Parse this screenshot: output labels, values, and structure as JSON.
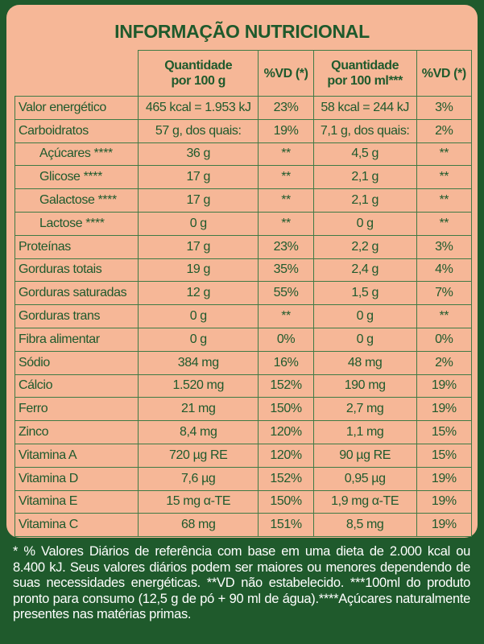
{
  "title": "INFORMAÇÃO NUTRICIONAL",
  "table": {
    "header": [
      [
        "Quantidade",
        "por 100 g"
      ],
      [
        "%VD (*)"
      ],
      [
        "Quantidade",
        "por 100 ml***"
      ],
      [
        "%VD (*)"
      ]
    ],
    "rows": [
      [
        "Valor energético",
        "465 kcal = 1.953 kJ",
        "23%",
        "58 kcal = 244 kJ",
        "3%"
      ],
      [
        "Carboidratos",
        "57 g, dos quais:",
        "19%",
        "7,1 g, dos quais:",
        "2%"
      ],
      [
        "Açúcares ****",
        "36 g",
        "**",
        "4,5 g",
        "**"
      ],
      [
        "Glicose ****",
        "17 g",
        "**",
        "2,1 g",
        "**"
      ],
      [
        "Galactose ****",
        "17 g",
        "**",
        "2,1 g",
        "**"
      ],
      [
        "Lactose ****",
        "0 g",
        "**",
        "0 g",
        "**"
      ],
      [
        "Proteínas",
        "17 g",
        "23%",
        "2,2 g",
        "3%"
      ],
      [
        "Gorduras totais",
        "19 g",
        "35%",
        "2,4 g",
        "4%"
      ],
      [
        "Gorduras saturadas",
        "12 g",
        "55%",
        "1,5 g",
        "7%"
      ],
      [
        "Gorduras trans",
        "0 g",
        "**",
        "0 g",
        "**"
      ],
      [
        "Fibra alimentar",
        "0 g",
        "0%",
        "0 g",
        "0%"
      ],
      [
        "Sódio",
        "384 mg",
        "16%",
        "48 mg",
        "2%"
      ],
      [
        "Cálcio",
        "1.520 mg",
        "152%",
        "190 mg",
        "19%"
      ],
      [
        "Ferro",
        "21 mg",
        "150%",
        "2,7 mg",
        "19%"
      ],
      [
        "Zinco",
        "8,4 mg",
        "120%",
        "1,1 mg",
        "15%"
      ],
      [
        "Vitamina A",
        "720 µg RE",
        "120%",
        "90 µg RE",
        "15%"
      ],
      [
        "Vitamina D",
        "7,6 µg",
        "152%",
        "0,95 µg",
        "19%"
      ],
      [
        "Vitamina E",
        "15 mg α-TE",
        "150%",
        "1,9 mg α-TE",
        "19%"
      ],
      [
        "Vitamina C",
        "68 mg",
        "151%",
        "8,5 mg",
        "19%"
      ]
    ]
  },
  "footnote": "* % Valores Diários de referência com base em uma dieta de 2.000 kcal ou 8.400 kJ. Seus valores diários podem ser maiores ou menores dependendo de suas necessidades energéticas. **VD não estabelecido. ***100ml do produto pronto para consumo (12,5 g de pó + 90 ml de água).****Açúcares naturalmente presentes nas matérias primas."
}
